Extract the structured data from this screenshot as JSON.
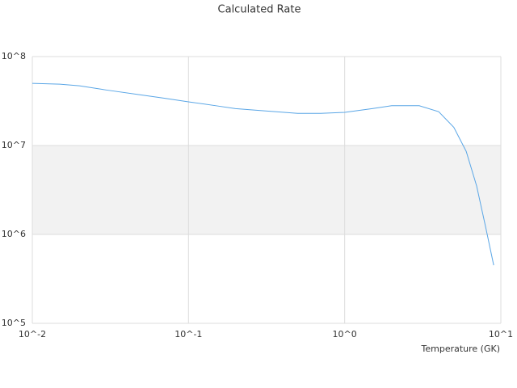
{
  "chart_data": {
    "type": "line",
    "title": "Calculated Rate",
    "x_label": "Temperature (GK)",
    "x": [
      0.01,
      0.015,
      0.02,
      0.03,
      0.05,
      0.07,
      0.1,
      0.15,
      0.2,
      0.3,
      0.5,
      0.7,
      1,
      1.5,
      2,
      3,
      4,
      5,
      6,
      7,
      8,
      9
    ],
    "values": [
      50000000,
      49000000,
      47000000,
      42000000,
      37000000,
      34000000,
      31000000,
      28000000,
      26000000,
      24600000,
      23000000,
      23000000,
      23600000,
      26000000,
      28000000,
      28000000,
      24000000,
      16000000,
      8600000,
      3500000,
      1200000,
      450000
    ],
    "color": "#5aa6e6",
    "xscale": "log",
    "yscale": "log",
    "xlim": [
      0.01,
      10
    ],
    "ylim": [
      100000,
      100000000
    ],
    "xticks": [
      {
        "value": 0.01,
        "label": "10^-2"
      },
      {
        "value": 0.1,
        "label": "10^-1"
      },
      {
        "value": 1,
        "label": "10^0"
      },
      {
        "value": 10,
        "label": "10^1"
      }
    ],
    "yticks": [
      {
        "value": 100000,
        "label": "10^5"
      },
      {
        "value": 1000000,
        "label": "10^6"
      },
      {
        "value": 10000000,
        "label": "10^7"
      },
      {
        "value": 100000000,
        "label": "10^8"
      }
    ],
    "grid": true,
    "band_color": "#f2f2f2"
  }
}
